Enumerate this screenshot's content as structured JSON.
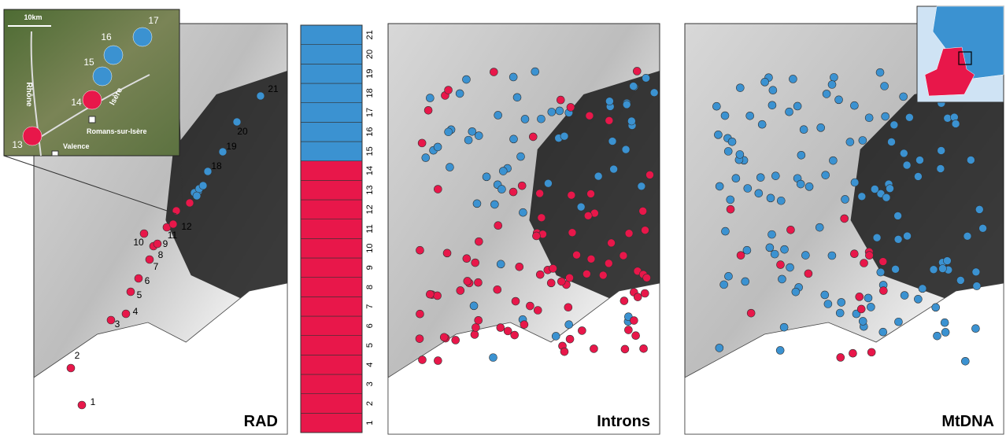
{
  "panels": [
    {
      "label": "RAD"
    },
    {
      "label": "Introns"
    },
    {
      "label": "MtDNA"
    }
  ],
  "rad_sites": [
    "1",
    "2",
    "3",
    "4",
    "5",
    "6",
    "7",
    "8",
    "9",
    "10",
    "11",
    "12",
    "13",
    "14",
    "15",
    "16",
    "17",
    "18",
    "19",
    "20",
    "21"
  ],
  "structure_axis": [
    "1",
    "2",
    "3",
    "4",
    "5",
    "6",
    "7",
    "8",
    "9",
    "10",
    "11",
    "12",
    "13",
    "14",
    "15",
    "16",
    "17",
    "18",
    "19",
    "20",
    "21"
  ],
  "inset": {
    "scale": "10km",
    "rivers": [
      "Rhône",
      "Isère"
    ],
    "towns": [
      "Romans-sur-Isère",
      "Valence"
    ],
    "sites": [
      "13",
      "14",
      "15",
      "16",
      "17"
    ]
  }
}
